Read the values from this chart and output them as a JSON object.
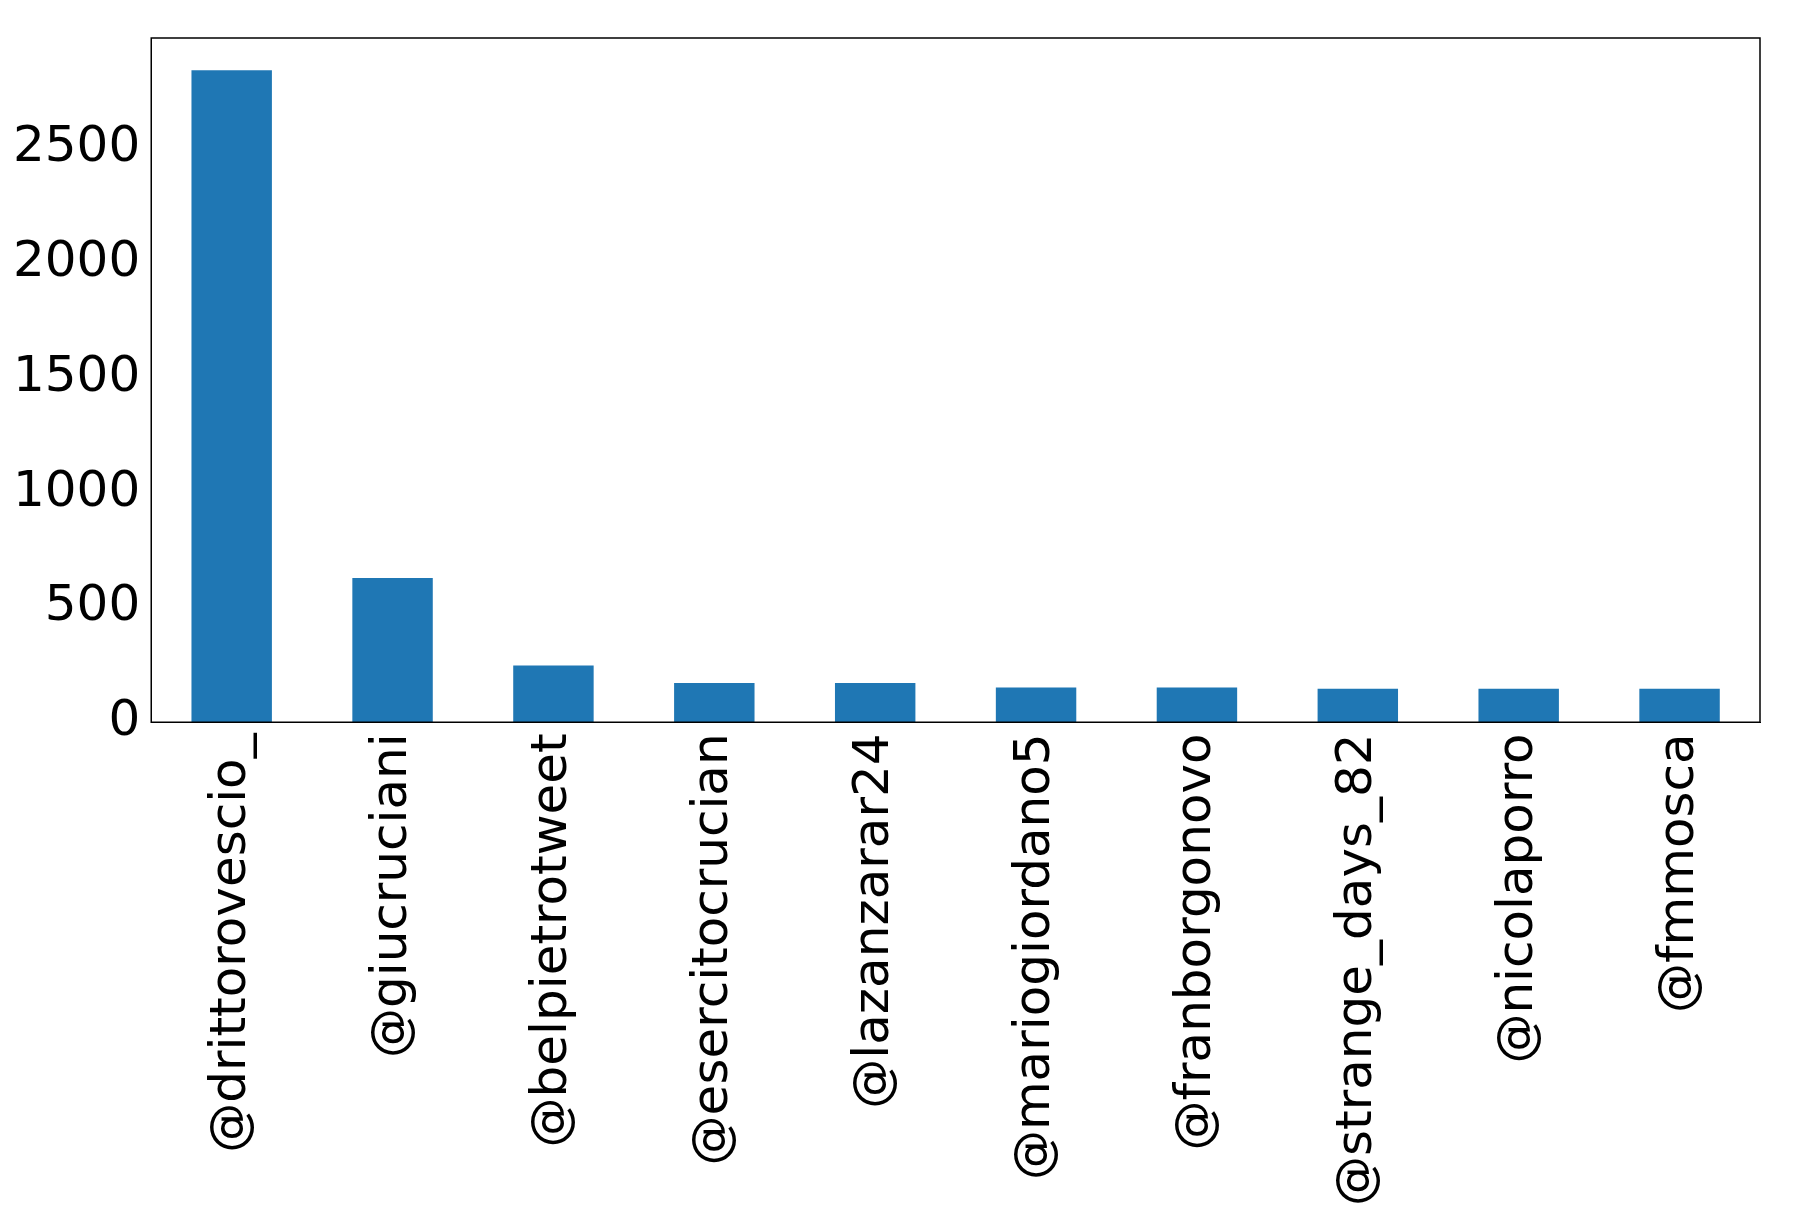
{
  "chart_data": {
    "type": "bar",
    "categories": [
      "@drittorovescio_",
      "@giucruciani",
      "@belpietrotweet",
      "@esercitocrucian",
      "@lazanzarar24",
      "@mariogiordano5",
      "@franborgonovo",
      "@strange_days_82",
      "@nicolaporro",
      "@fmmosca"
    ],
    "values": [
      2840,
      628,
      247,
      171,
      171,
      152,
      152,
      146,
      146,
      146
    ],
    "color": "#1f77b4",
    "ylim": [
      0,
      2980
    ],
    "yticks": [
      0,
      500,
      1000,
      1500,
      2000,
      2500
    ],
    "grid": false,
    "legend": false
  }
}
